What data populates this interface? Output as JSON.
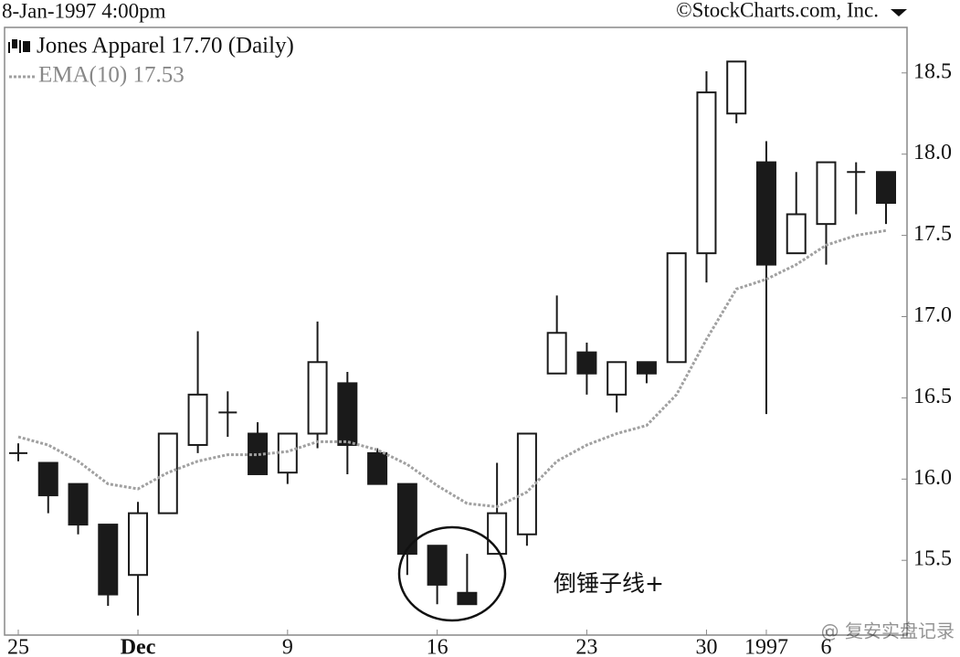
{
  "chart_data": {
    "type": "candlestick",
    "date_label": "8-Jan-1997 4:00pm",
    "copyright": "©StockCharts.com, Inc.",
    "categories": [
      "25",
      null,
      null,
      null,
      "Dec",
      null,
      null,
      null,
      null,
      "9",
      null,
      null,
      null,
      null,
      "16",
      null,
      null,
      null,
      null,
      "23",
      null,
      null,
      null,
      "30",
      null,
      "1997",
      null,
      "6",
      null,
      null
    ],
    "series": [
      {
        "name": "Jones Apparel 17.70 (Daily)",
        "color": "#1a1a1a",
        "open": [
          16.16,
          16.1,
          15.97,
          15.72,
          15.41,
          15.79,
          16.21,
          16.41,
          16.28,
          16.04,
          16.28,
          16.59,
          16.16,
          15.97,
          15.59,
          15.3,
          15.54,
          15.66,
          16.65,
          16.78,
          16.52,
          16.72,
          16.72,
          17.39,
          18.25,
          17.95,
          17.39,
          17.57,
          17.89,
          17.89
        ],
        "high": [
          16.22,
          16.1,
          15.97,
          15.72,
          15.86,
          16.28,
          16.91,
          16.54,
          16.35,
          16.28,
          16.97,
          16.66,
          16.19,
          15.97,
          15.59,
          15.54,
          16.1,
          16.28,
          17.13,
          16.84,
          16.72,
          16.72,
          17.39,
          18.51,
          18.57,
          18.08,
          17.89,
          17.95,
          17.95,
          17.89
        ],
        "low": [
          16.11,
          15.79,
          15.66,
          15.22,
          15.16,
          15.79,
          16.16,
          16.26,
          16.03,
          15.97,
          16.19,
          16.03,
          15.97,
          15.41,
          15.23,
          15.23,
          15.54,
          15.59,
          16.65,
          16.52,
          16.41,
          16.59,
          16.72,
          17.21,
          18.19,
          16.4,
          17.39,
          17.32,
          17.63,
          17.57
        ],
        "close": [
          16.16,
          15.9,
          15.72,
          15.29,
          15.79,
          16.28,
          16.52,
          16.41,
          16.03,
          16.28,
          16.72,
          16.21,
          15.97,
          15.54,
          15.35,
          15.23,
          15.79,
          16.28,
          16.9,
          16.65,
          16.72,
          16.65,
          17.39,
          18.38,
          18.57,
          17.32,
          17.63,
          17.95,
          17.89,
          17.7
        ]
      },
      {
        "name": "EMA(10) 17.53",
        "type": "line",
        "color": "#a0a0a0",
        "values": [
          16.26,
          16.21,
          16.11,
          15.97,
          15.94,
          16.04,
          16.11,
          16.15,
          16.15,
          16.17,
          16.23,
          16.23,
          16.18,
          16.09,
          15.96,
          15.85,
          15.83,
          15.92,
          16.11,
          16.21,
          16.28,
          16.33,
          16.52,
          16.86,
          17.17,
          17.23,
          17.32,
          17.44,
          17.5,
          17.53
        ]
      }
    ],
    "ylim": [
      15.04,
      18.78
    ],
    "yticks": [
      15.5,
      {
        "value": 16,
        "label": "16.0"
      },
      16.5,
      {
        "value": 17,
        "label": "17.0"
      },
      17.5,
      {
        "value": 18,
        "label": "18.0"
      },
      18.5
    ],
    "grid": false,
    "annotation": "倒锤子线+",
    "watermark": "@ 复安实盘记录"
  }
}
